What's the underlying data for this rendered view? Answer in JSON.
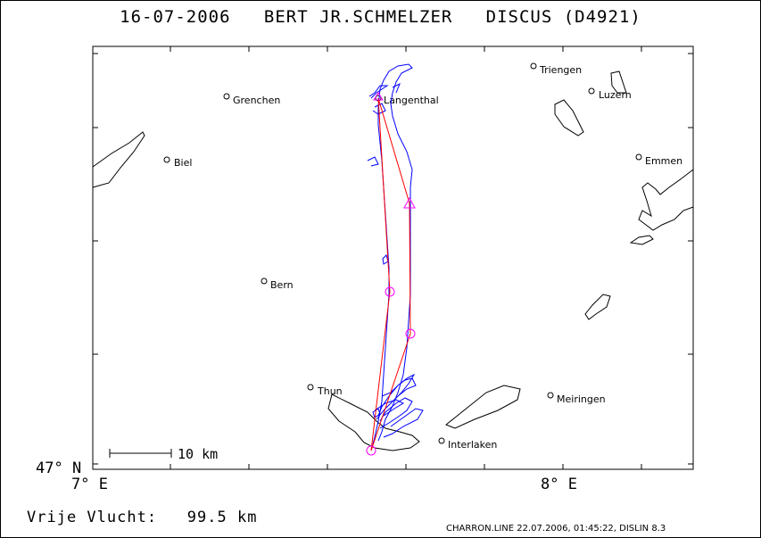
{
  "header": {
    "date": "16-07-2006",
    "pilot": "BERT JR.SCHMELZER",
    "glider": "DISCUS (D4921)"
  },
  "axes": {
    "lat_label": "47° N",
    "lon_left_label": "7° E",
    "lon_right_label": "8° E"
  },
  "scale": {
    "label": "10 km"
  },
  "towns": [
    {
      "name": "Triengen"
    },
    {
      "name": "Grenchen"
    },
    {
      "name": "Langenthal"
    },
    {
      "name": "Luzern"
    },
    {
      "name": "Biel"
    },
    {
      "name": "Emmen"
    },
    {
      "name": "Bern"
    },
    {
      "name": "Thun"
    },
    {
      "name": "Meiringen"
    },
    {
      "name": "Interlaken"
    }
  ],
  "footer": {
    "flight_label": "Vrije Vlucht:",
    "distance": "99.5 km",
    "credit": "CHARRON.LINE 22.07.2006, 01:45:22, DISLIN 8.3"
  },
  "colors": {
    "track": "#0000ff",
    "task": "#ff0000",
    "turnpoint": "#ff00ff"
  }
}
